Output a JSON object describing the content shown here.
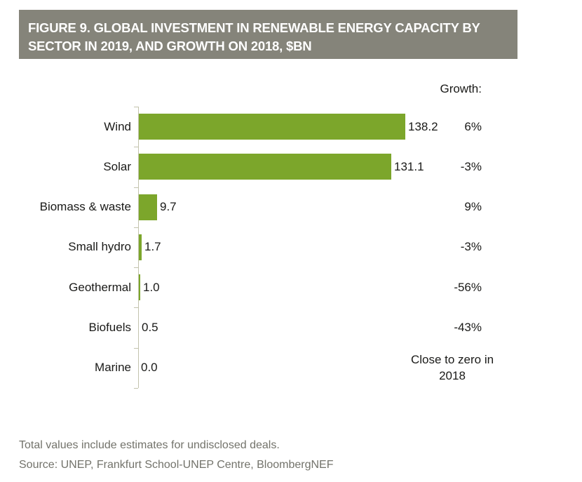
{
  "header": {
    "title": "FIGURE 9. GLOBAL INVESTMENT IN RENEWABLE ENERGY CAPACITY BY SECTOR IN 2019, AND GROWTH ON 2018, $BN",
    "banner_bg": "#85847a",
    "banner_text_color": "#ffffff"
  },
  "chart_data": {
    "type": "bar",
    "orientation": "horizontal",
    "title": "FIGURE 9. GLOBAL INVESTMENT IN RENEWABLE ENERGY CAPACITY BY SECTOR IN 2019, AND GROWTH ON 2018, $BN",
    "xlabel": "",
    "ylabel": "",
    "xlim": [
      0,
      145
    ],
    "grid": false,
    "legend": false,
    "growth_header": "Growth:",
    "categories": [
      "Wind",
      "Solar",
      "Biomass & waste",
      "Small hydro",
      "Geothermal",
      "Biofuels",
      "Marine"
    ],
    "values": [
      138.2,
      131.1,
      9.7,
      1.7,
      1.0,
      0.5,
      0.0
    ],
    "growth": [
      "6%",
      "-3%",
      "9%",
      "-3%",
      "-56%",
      "-43%",
      "Close to zero in 2018"
    ],
    "rows": [
      {
        "label": "Wind",
        "value": 138.2,
        "value_label": "138.2",
        "growth": "6%"
      },
      {
        "label": "Solar",
        "value": 131.1,
        "value_label": "131.1",
        "growth": "-3%"
      },
      {
        "label": "Biomass & waste",
        "value": 9.7,
        "value_label": "9.7",
        "growth": "9%"
      },
      {
        "label": "Small hydro",
        "value": 1.7,
        "value_label": "1.7",
        "growth": "-3%"
      },
      {
        "label": "Geothermal",
        "value": 1.0,
        "value_label": "1.0",
        "growth": "-56%"
      },
      {
        "label": "Biofuels",
        "value": 0.5,
        "value_label": "0.5",
        "growth": "-43%"
      },
      {
        "label": "Marine",
        "value": 0.0,
        "value_label": "0.0",
        "growth": "Close to zero in 2018",
        "growth_is_note": true
      }
    ],
    "max_value": 138.2,
    "bar_color": "#7ca62b",
    "axis_color": "#c3c3ad"
  },
  "footer": {
    "note": "Total values include estimates for undisclosed deals.",
    "source": "Source: UNEP, Frankfurt School-UNEP Centre, BloombergNEF"
  }
}
